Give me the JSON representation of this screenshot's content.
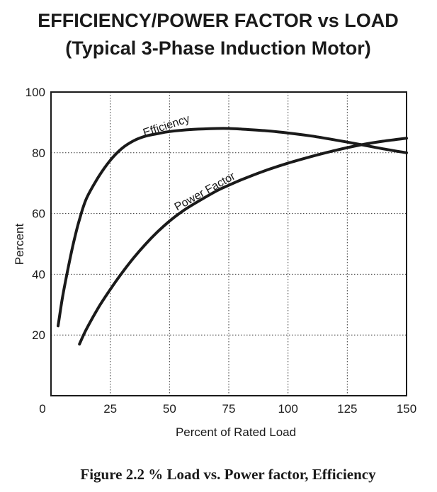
{
  "chart_data": {
    "type": "line",
    "title": "EFFICIENCY/POWER FACTOR vs LOAD",
    "subtitle": "(Typical 3-Phase Induction Motor)",
    "xlabel": "Percent of Rated Load",
    "ylabel": "Percent",
    "xlim": [
      0,
      150
    ],
    "ylim": [
      0,
      100
    ],
    "x_ticks": [
      0,
      25,
      50,
      75,
      100,
      125,
      150
    ],
    "y_ticks": [
      20,
      40,
      60,
      80,
      100
    ],
    "grid": true,
    "legend": "none",
    "series": [
      {
        "name": "Efficiency",
        "x": [
          3,
          5,
          8,
          10,
          12,
          15,
          20,
          25,
          30,
          35,
          40,
          45,
          50,
          60,
          70,
          75,
          80,
          90,
          100,
          110,
          120,
          130,
          140,
          150
        ],
        "y": [
          23,
          33,
          45,
          52,
          58,
          65,
          72,
          77.5,
          81.5,
          84,
          85.5,
          86.3,
          87,
          87.7,
          88,
          88,
          87.8,
          87.3,
          86.5,
          85.5,
          84.2,
          82.8,
          81.3,
          80
        ]
      },
      {
        "name": "Power Factor",
        "x": [
          12,
          15,
          20,
          25,
          30,
          35,
          40,
          45,
          50,
          55,
          60,
          70,
          75,
          80,
          90,
          100,
          110,
          120,
          130,
          140,
          150
        ],
        "y": [
          17,
          22,
          29,
          35,
          40.5,
          45.5,
          50,
          54,
          57.5,
          60.5,
          63,
          67.5,
          69.3,
          71,
          74,
          76.6,
          78.8,
          80.8,
          82.5,
          83.8,
          84.8
        ]
      }
    ]
  },
  "caption": "Figure 2.2 % Load vs. Power factor, Efficiency"
}
